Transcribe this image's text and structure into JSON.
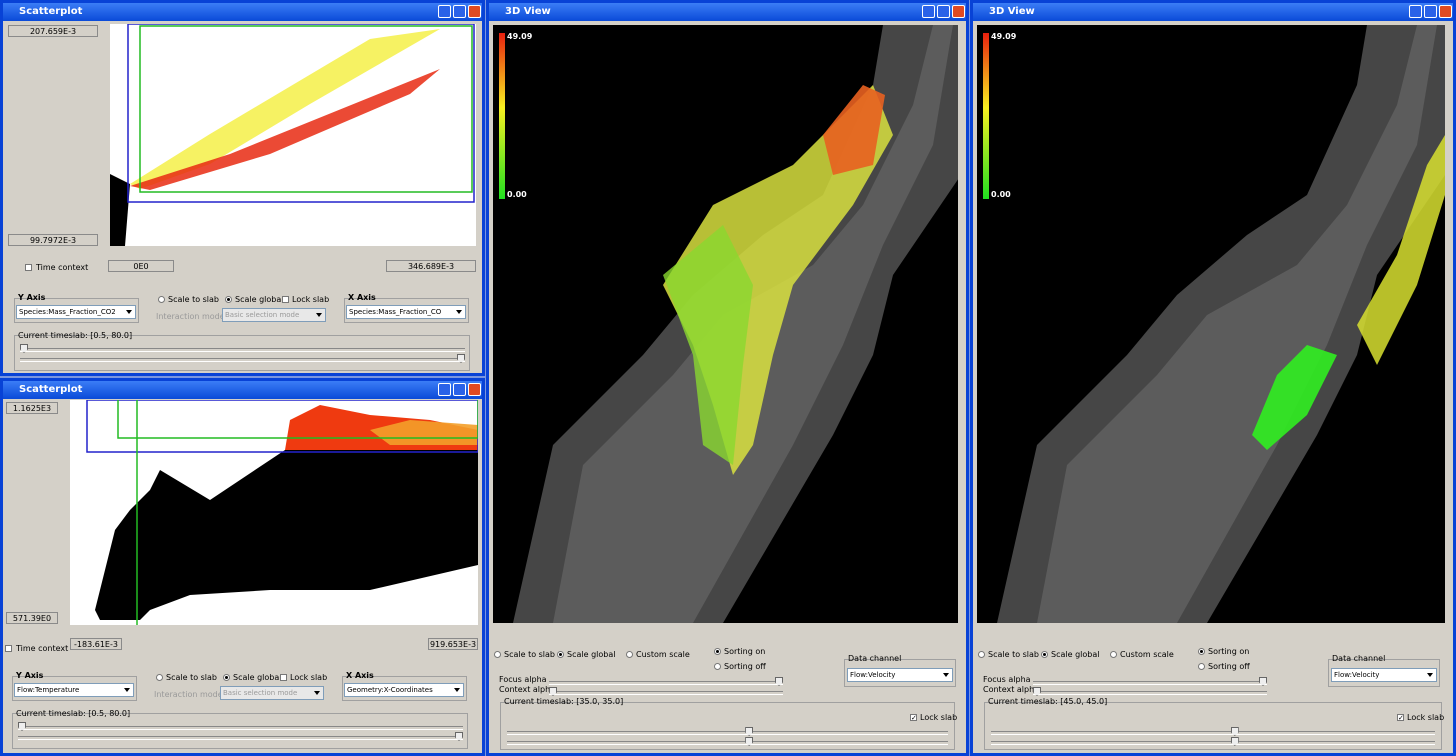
{
  "scatterplots": [
    {
      "title": "Scatterplot",
      "y_max": "207.659E-3",
      "y_min": "99.7972E-3",
      "time_context": "Time context",
      "x_min": "0E0",
      "x_max": "346.689E-3",
      "y_axis_label": "Y Axis",
      "y_axis": "Species:Mass_Fraction_CO2",
      "scale_to_slab": "Scale to slab",
      "scale_global": "Scale global",
      "lock_slab": "Lock slab",
      "interaction_mode_label": "Interaction mode:",
      "interaction_mode": "Basic selection mode",
      "x_axis_label": "X Axis",
      "x_axis": "Species:Mass_Fraction_CO",
      "timeslab": "Current timeslab: [0.5, 80.0]"
    },
    {
      "title": "Scatterplot",
      "y_max": "1.1625E3",
      "y_min": "571.39E0",
      "time_context": "Time context",
      "x_min": "-183.61E-3",
      "x_max": "919.653E-3",
      "y_axis_label": "Y Axis",
      "y_axis": "Flow:Temperature",
      "scale_to_slab": "Scale to slab",
      "scale_global": "Scale global",
      "lock_slab": "Lock slab",
      "interaction_mode_label": "Interaction mode:",
      "interaction_mode": "Basic selection mode",
      "x_axis_label": "X Axis",
      "x_axis": "Geometry:X-Coordinates",
      "timeslab": "Current timeslab: [0.5, 80.0]"
    }
  ],
  "views": [
    {
      "title": "3D View",
      "color_max": "49.09",
      "color_min": "0.00",
      "scale_to_slab": "Scale to slab",
      "scale_global": "Scale global",
      "custom_scale": "Custom scale",
      "sorting_on": "Sorting on",
      "sorting_off": "Sorting off",
      "data_channel_label": "Data channel",
      "data_channel": "Flow:Velocity",
      "focus_alpha": "Focus alpha",
      "context_alpha": "Context alpha",
      "timeslab": "Current timeslab: [35.0, 35.0]",
      "lock_slab": "Lock slab"
    },
    {
      "title": "3D View",
      "color_max": "49.09",
      "color_min": "0.00",
      "scale_to_slab": "Scale to slab",
      "scale_global": "Scale global",
      "custom_scale": "Custom scale",
      "sorting_on": "Sorting on",
      "sorting_off": "Sorting off",
      "data_channel_label": "Data channel",
      "data_channel": "Flow:Velocity",
      "focus_alpha": "Focus alpha",
      "context_alpha": "Context alpha",
      "timeslab": "Current timeslab: [45.0, 45.0]",
      "lock_slab": "Lock slab"
    }
  ]
}
